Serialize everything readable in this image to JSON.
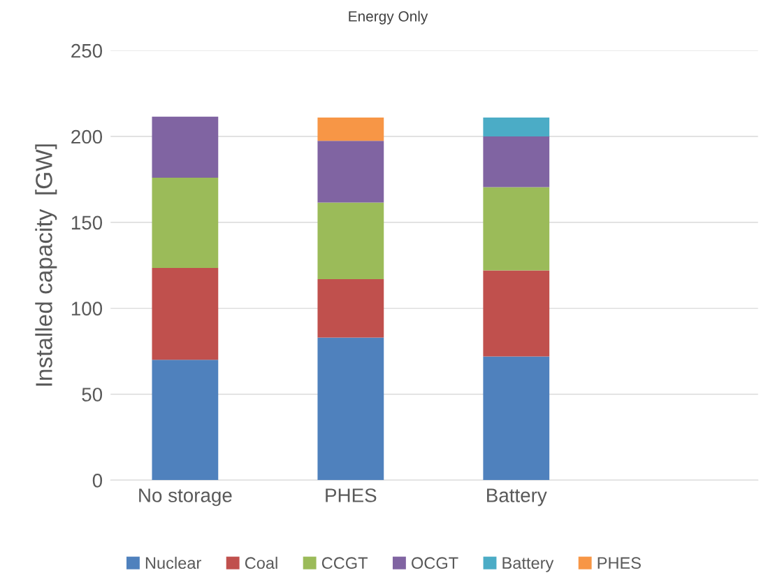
{
  "chart_data": {
    "type": "bar",
    "stacked": true,
    "title": "Energy Only",
    "ylabel": "Installed capacity  [GW]",
    "categories": [
      "No storage",
      "PHES",
      "Battery"
    ],
    "series": [
      {
        "name": "Nuclear",
        "color": "#4f81bd",
        "values": [
          70,
          83,
          72
        ]
      },
      {
        "name": "Coal",
        "color": "#c0504d",
        "values": [
          53.5,
          34,
          50
        ]
      },
      {
        "name": "CCGT",
        "color": "#9bbb59",
        "values": [
          52.5,
          44.5,
          48.5
        ]
      },
      {
        "name": "OCGT",
        "color": "#8064a2",
        "values": [
          35.5,
          36,
          29.5
        ]
      },
      {
        "name": "Battery",
        "color": "#4bacc6",
        "values": [
          0,
          0,
          11
        ]
      },
      {
        "name": "PHES",
        "color": "#f79646",
        "values": [
          0,
          13.5,
          0
        ]
      }
    ],
    "ylim": [
      0,
      250
    ],
    "yticks": [
      0,
      50,
      100,
      150,
      200,
      250
    ],
    "grid": "y",
    "legend": "bottom"
  }
}
